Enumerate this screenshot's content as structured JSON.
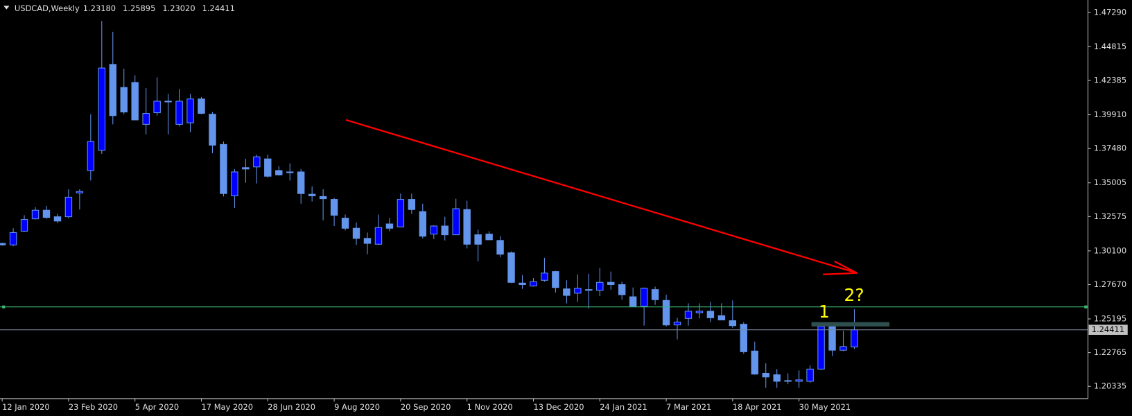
{
  "chart_data": {
    "type": "candlestick",
    "title": "USDCAD,Weekly",
    "header_values": [
      "1.23180",
      "1.25895",
      "1.23020",
      "1.24411"
    ],
    "annotations": [
      "1",
      "2?"
    ],
    "up_color": "#0000ff",
    "down_color": "#6495ed",
    "ylim": [
      1.1945,
      1.4818
    ],
    "yticks": [
      {
        "value": 1.4729,
        "label": "1.47290"
      },
      {
        "value": 1.44815,
        "label": "1.44815"
      },
      {
        "value": 1.42385,
        "label": "1.42385"
      },
      {
        "value": 1.3991,
        "label": "1.39910"
      },
      {
        "value": 1.3748,
        "label": "1.37480"
      },
      {
        "value": 1.35005,
        "label": "1.35005"
      },
      {
        "value": 1.32575,
        "label": "1.32575"
      },
      {
        "value": 1.301,
        "label": "1.30100"
      },
      {
        "value": 1.2767,
        "label": "1.27670"
      },
      {
        "value": 1.25195,
        "label": "1.25195"
      },
      {
        "value": 1.22765,
        "label": "1.22765"
      },
      {
        "value": 1.20335,
        "label": "1.20335"
      }
    ],
    "categories": [
      "12 Jan 2020",
      null,
      null,
      null,
      null,
      null,
      "23 Feb 2020",
      null,
      null,
      null,
      null,
      null,
      "5 Apr 2020",
      null,
      null,
      null,
      null,
      null,
      "17 May 2020",
      null,
      null,
      null,
      null,
      null,
      "28 Jun 2020",
      null,
      null,
      null,
      null,
      null,
      "9 Aug 2020",
      null,
      null,
      null,
      null,
      null,
      "20 Sep 2020",
      null,
      null,
      null,
      null,
      null,
      "1 Nov 2020",
      null,
      null,
      null,
      null,
      null,
      "13 Dec 2020",
      null,
      null,
      null,
      null,
      null,
      "24 Jan 2021",
      null,
      null,
      null,
      null,
      null,
      "7 Mar 2021",
      null,
      null,
      null,
      null,
      null,
      "18 Apr 2021",
      null,
      null,
      null,
      null,
      null,
      "30 May 2021",
      null,
      null,
      null,
      null,
      null
    ],
    "open": [
      1.3064,
      1.3053,
      1.3152,
      1.3241,
      1.3303,
      1.3256,
      1.3256,
      1.3428,
      1.3589,
      1.3735,
      1.4354,
      1.4188,
      1.4224,
      1.3922,
      1.4006,
      1.4089,
      1.3922,
      1.3933,
      1.4105,
      1.3995,
      1.3777,
      1.3407,
      1.361,
      1.3615,
      1.3673,
      1.3589,
      1.3579,
      1.3579,
      1.3418,
      1.3402,
      1.3381,
      1.3246,
      1.3173,
      1.31,
      1.3058,
      1.3204,
      1.3183,
      1.3381,
      1.3293,
      1.3131,
      1.3189,
      1.3126,
      1.3308,
      1.3126,
      1.3131,
      1.3085,
      1.2996,
      1.2778,
      1.2757,
      1.2798,
      1.2861,
      1.2736,
      1.2705,
      1.2731,
      1.2726,
      1.2783,
      1.2767,
      1.2679,
      1.2611,
      1.2731,
      1.2653,
      1.2476,
      1.2523,
      1.2564,
      1.2575,
      1.2543,
      1.2507,
      1.2481,
      1.2288,
      1.2127,
      1.2117,
      1.2075,
      1.207,
      1.207,
      1.2158,
      1.2465,
      1.2294,
      1.2318
    ],
    "high": [
      1.3069,
      1.3173,
      1.3267,
      1.3324,
      1.3334,
      1.3277,
      1.3454,
      1.3454,
      1.3995,
      1.4667,
      1.4589,
      1.4323,
      1.4276,
      1.4183,
      1.4261,
      1.4141,
      1.4177,
      1.4141,
      1.412,
      1.4011,
      1.3798,
      1.36,
      1.3673,
      1.3704,
      1.3704,
      1.3621,
      1.3641,
      1.36,
      1.3475,
      1.3454,
      1.3392,
      1.3272,
      1.3215,
      1.3142,
      1.3272,
      1.3246,
      1.3423,
      1.3423,
      1.335,
      1.3194,
      1.3256,
      1.3386,
      1.3371,
      1.3163,
      1.3152,
      1.3116,
      1.3006,
      1.2835,
      1.2814,
      1.296,
      1.2866,
      1.2798,
      1.284,
      1.2845,
      1.2887,
      1.2861,
      1.2788,
      1.2746,
      1.2746,
      1.2752,
      1.2694,
      1.2528,
      1.2632,
      1.2632,
      1.2642,
      1.2632,
      1.2653,
      1.2497,
      1.2356,
      1.22,
      1.2158,
      1.2127,
      1.2148,
      1.2184,
      1.2471,
      1.2481,
      1.2434,
      1.25895
    ],
    "low": [
      1.3048,
      1.3043,
      1.3147,
      1.3236,
      1.3241,
      1.321,
      1.3246,
      1.3308,
      1.3517,
      1.3709,
      1.3922,
      1.3995,
      1.3954,
      1.385,
      1.3985,
      1.385,
      1.3907,
      1.3865,
      1.3995,
      1.3714,
      1.3402,
      1.3319,
      1.3501,
      1.3496,
      1.3537,
      1.3553,
      1.3517,
      1.335,
      1.3366,
      1.323,
      1.3189,
      1.3157,
      1.3053,
      1.2986,
      1.3053,
      1.3152,
      1.3183,
      1.3277,
      1.31,
      1.3095,
      1.3085,
      1.3126,
      1.3027,
      1.2934,
      1.309,
      1.2965,
      1.2778,
      1.2736,
      1.2752,
      1.2788,
      1.271,
      1.2632,
      1.2642,
      1.2595,
      1.2684,
      1.2731,
      1.2658,
      1.2606,
      1.2471,
      1.2621,
      1.2465,
      1.2372,
      1.2471,
      1.2523,
      1.2497,
      1.2512,
      1.2455,
      1.2268,
      1.2117,
      1.2023,
      1.2023,
      1.2049,
      1.2023,
      1.2059,
      1.2153,
      1.2252,
      1.2288,
      1.2302
    ],
    "close": [
      1.3053,
      1.3142,
      1.3236,
      1.3303,
      1.3251,
      1.3225,
      1.3397,
      1.3438,
      1.3798,
      1.4328,
      1.3985,
      1.4011,
      1.3954,
      1.4001,
      1.4089,
      1.4084,
      1.4089,
      1.4105,
      1.4001,
      1.3772,
      1.3423,
      1.3579,
      1.36,
      1.3688,
      1.3548,
      1.3558,
      1.3574,
      1.3423,
      1.3407,
      1.3386,
      1.3267,
      1.3173,
      1.31,
      1.3064,
      1.3178,
      1.3173,
      1.3381,
      1.3308,
      1.3116,
      1.3189,
      1.3126,
      1.3314,
      1.3058,
      1.3058,
      1.309,
      1.2986,
      1.2783,
      1.2767,
      1.2788,
      1.285,
      1.2746,
      1.2689,
      1.2741,
      1.2726,
      1.2783,
      1.2767,
      1.2694,
      1.2611,
      1.2741,
      1.2658,
      1.2476,
      1.2497,
      1.2575,
      1.2575,
      1.2528,
      1.2512,
      1.2471,
      1.2283,
      1.2122,
      1.2101,
      1.207,
      1.207,
      1.208,
      1.2158,
      1.2465,
      1.2294,
      1.232,
      1.24411
    ]
  }
}
